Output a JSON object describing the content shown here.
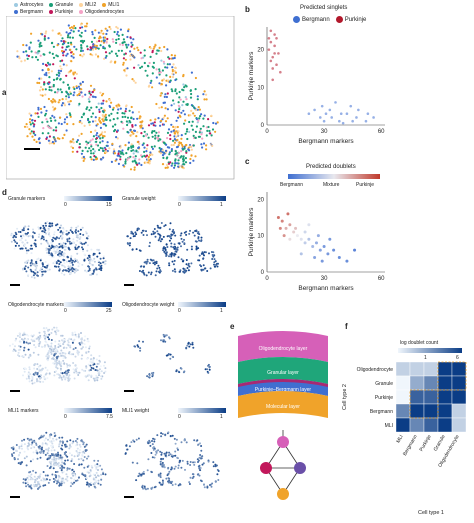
{
  "panel_a": {
    "letter": "a",
    "legend": [
      {
        "label": "Astrocytes",
        "color": "#9ecae1"
      },
      {
        "label": "Granule",
        "color": "#1a9e77"
      },
      {
        "label": "MLI2",
        "color": "#fdd49e"
      },
      {
        "label": "MLI1",
        "color": "#f0a32a"
      },
      {
        "label": "Bergmann",
        "color": "#3f6fd1"
      },
      {
        "label": "Purkinje",
        "color": "#c2185b"
      },
      {
        "label": "Oligodendrocytes",
        "color": "#f5a3c7"
      }
    ]
  },
  "panel_b": {
    "letter": "b",
    "legend_title": "Predicted singlets",
    "legend": [
      {
        "label": "Bergmann",
        "color": "#3f6fd1"
      },
      {
        "label": "Purkinje",
        "color": "#b2182b"
      }
    ],
    "xlabel": "Bergmann markers",
    "ylabel": "Purkinje markers",
    "xticks": [
      "0",
      "30",
      "60"
    ],
    "yticks": [
      "0",
      "10",
      "20"
    ]
  },
  "panel_c": {
    "letter": "c",
    "legend_title": "Predicted doublets",
    "colorbar_labels": [
      "Bergmann",
      "Mixture",
      "Purkinje"
    ],
    "xlabel": "Bergmann markers",
    "ylabel": "Purkinje markers",
    "xticks": [
      "0",
      "30",
      "60"
    ],
    "yticks": [
      "0",
      "10",
      "20"
    ]
  },
  "panel_d": {
    "letter": "d",
    "rows": [
      {
        "left_title": "Granule markers",
        "left_min": "0",
        "left_max": "15",
        "right_title": "Granule weight",
        "right_min": "0",
        "right_max": "1"
      },
      {
        "left_title": "Oligodendrocyte markers",
        "left_min": "0",
        "left_max": "25",
        "right_title": "Oligodendrocyte weight",
        "right_min": "0",
        "right_max": "1"
      },
      {
        "left_title": "MLI1 markers",
        "left_min": "0",
        "left_max": "7.5",
        "right_title": "MLI1 weight",
        "right_min": "0",
        "right_max": "1"
      }
    ]
  },
  "panel_e": {
    "letter": "e",
    "layers": [
      "Oligodendrocyte layer",
      "Granular layer",
      "Purkinje–Bergmann layer",
      "Molecular layer"
    ],
    "layer_colors": [
      "#d660b8",
      "#1fa67a",
      "#3f6fd1",
      "#f0a32a"
    ],
    "purkinje_color": "#c2185b",
    "mixture_color": "#6a4fa8"
  },
  "panel_f": {
    "letter": "f",
    "colorbar_title": "log doublet count",
    "colorbar_min": "1",
    "colorbar_max": "6",
    "ylabel": "Cell type 2",
    "xlabel": "Cell type 1",
    "row_labels": [
      "Oligodendrocyte",
      "Granule",
      "Purkinje",
      "Bergmann",
      "MLI"
    ],
    "col_labels": [
      "MLI",
      "Bergmann",
      "Purkinje",
      "Granule",
      "Oligodendrocyte"
    ]
  },
  "chart_data": [
    {
      "type": "scatter",
      "title": "Predicted singlets",
      "xlabel": "Bergmann markers",
      "ylabel": "Purkinje markers",
      "xlim": [
        0,
        62
      ],
      "ylim": [
        0,
        26
      ],
      "series": [
        {
          "name": "Bergmann",
          "points": [
            [
              22,
              3
            ],
            [
              28,
              2
            ],
            [
              33,
              4
            ],
            [
              38,
              1
            ],
            [
              42,
              3
            ],
            [
              47,
              2
            ],
            [
              52,
              1
            ],
            [
              36,
              6
            ],
            [
              30,
              1
            ],
            [
              44,
              5
            ],
            [
              56,
              2
            ],
            [
              25,
              4
            ],
            [
              40,
              0.5
            ],
            [
              48,
              4
            ],
            [
              34,
              2
            ],
            [
              29,
              5
            ],
            [
              53,
              3
            ],
            [
              45,
              1
            ],
            [
              39,
              3
            ],
            [
              31,
              3
            ]
          ]
        },
        {
          "name": "Purkinje",
          "points": [
            [
              2,
              22
            ],
            [
              3,
              18
            ],
            [
              4,
              24
            ],
            [
              1,
              20
            ],
            [
              5,
              16
            ],
            [
              2,
              25
            ],
            [
              4,
              21
            ],
            [
              3,
              15
            ],
            [
              6,
              19
            ],
            [
              2,
              17
            ],
            [
              5,
              23
            ],
            [
              3,
              12
            ],
            [
              1,
              23
            ],
            [
              4,
              19
            ],
            [
              7,
              14
            ]
          ]
        }
      ]
    },
    {
      "type": "scatter",
      "title": "Predicted doublets",
      "xlabel": "Bergmann markers",
      "ylabel": "Purkinje markers",
      "xlim": [
        0,
        62
      ],
      "ylim": [
        0,
        22
      ],
      "points": [
        [
          6,
          15,
          0.9
        ],
        [
          8,
          14,
          0.85
        ],
        [
          10,
          12,
          0.7
        ],
        [
          12,
          13,
          0.75
        ],
        [
          14,
          11,
          0.6
        ],
        [
          16,
          10,
          0.5
        ],
        [
          18,
          9,
          0.45
        ],
        [
          20,
          8,
          0.35
        ],
        [
          22,
          9,
          0.3
        ],
        [
          24,
          7,
          0.25
        ],
        [
          26,
          8,
          0.2
        ],
        [
          28,
          6,
          0.15
        ],
        [
          30,
          7,
          0.1
        ],
        [
          32,
          5,
          0.1
        ],
        [
          35,
          6,
          0.05
        ],
        [
          38,
          4,
          0.05
        ],
        [
          12,
          9,
          0.55
        ],
        [
          15,
          12,
          0.65
        ],
        [
          9,
          10,
          0.8
        ],
        [
          20,
          11,
          0.4
        ],
        [
          27,
          10,
          0.2
        ],
        [
          33,
          9,
          0.1
        ],
        [
          42,
          3,
          0.05
        ],
        [
          46,
          6,
          0.0
        ],
        [
          18,
          5,
          0.3
        ],
        [
          25,
          4,
          0.15
        ],
        [
          11,
          16,
          0.9
        ],
        [
          7,
          12,
          0.85
        ],
        [
          22,
          13,
          0.45
        ],
        [
          29,
          3,
          0.1
        ]
      ]
    },
    {
      "type": "heatmap",
      "title": "log doublet count",
      "xlabel": "Cell type 1",
      "ylabel": "Cell type 2",
      "rows": [
        "Oligodendrocyte",
        "Granule",
        "Purkinje",
        "Bergmann",
        "MLI"
      ],
      "cols": [
        "MLI",
        "Bergmann",
        "Purkinje",
        "Granule",
        "Oligodendrocyte"
      ],
      "values": [
        [
          2,
          2,
          2,
          6,
          6
        ],
        [
          1,
          3,
          4,
          6,
          6
        ],
        [
          1,
          5,
          5,
          6,
          6
        ],
        [
          4,
          6,
          6,
          6,
          2
        ],
        [
          6,
          4,
          5,
          6,
          2
        ]
      ]
    }
  ]
}
